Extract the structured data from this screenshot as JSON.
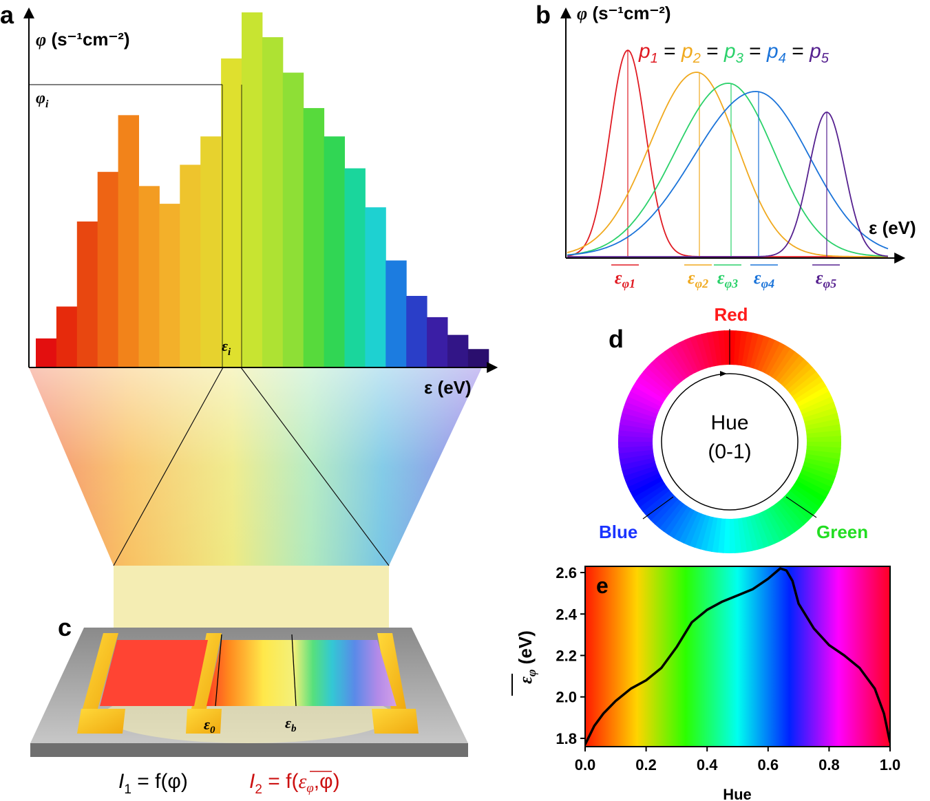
{
  "panel_a": {
    "label": "a",
    "y_axis": {
      "symbol": "φ",
      "unit": "(s⁻¹cm⁻²)"
    },
    "phi_i": "φ",
    "phi_i_sub": "i",
    "eps_i": "ε",
    "eps_i_sub": "i",
    "x_axis": "ε (eV)",
    "bars": [
      {
        "h": 0.08,
        "color": "#e30f0f"
      },
      {
        "h": 0.17,
        "color": "#e62a0c"
      },
      {
        "h": 0.41,
        "color": "#e84710"
      },
      {
        "h": 0.55,
        "color": "#ee6414"
      },
      {
        "h": 0.71,
        "color": "#f2831a"
      },
      {
        "h": 0.51,
        "color": "#f39c22"
      },
      {
        "h": 0.46,
        "color": "#f3b02a"
      },
      {
        "h": 0.57,
        "color": "#eec42d"
      },
      {
        "h": 0.65,
        "color": "#e7d22e"
      },
      {
        "h": 0.87,
        "color": "#dfe02e"
      },
      {
        "h": 1.0,
        "color": "#c8e431"
      },
      {
        "h": 0.93,
        "color": "#aee233"
      },
      {
        "h": 0.83,
        "color": "#8edf36"
      },
      {
        "h": 0.73,
        "color": "#57da3c"
      },
      {
        "h": 0.65,
        "color": "#31d654"
      },
      {
        "h": 0.56,
        "color": "#1ad69c"
      },
      {
        "h": 0.45,
        "color": "#1ed1d1"
      },
      {
        "h": 0.3,
        "color": "#1c7ce0"
      },
      {
        "h": 0.2,
        "color": "#2a3ec8"
      },
      {
        "h": 0.14,
        "color": "#3a1ea5"
      },
      {
        "h": 0.09,
        "color": "#321587"
      },
      {
        "h": 0.05,
        "color": "#2a0e6e"
      }
    ]
  },
  "panel_b": {
    "label": "b",
    "y_axis": {
      "symbol": "φ",
      "unit": "(s⁻¹cm⁻²)"
    },
    "x_axis": "ε (eV)",
    "equality": [
      {
        "p": "p",
        "sub": "1",
        "color": "#e01a22"
      },
      {
        "p": "p",
        "sub": "2",
        "color": "#f0a91e"
      },
      {
        "p": "p",
        "sub": "3",
        "color": "#2ad16a"
      },
      {
        "p": "p",
        "sub": "4",
        "color": "#1a73d9"
      },
      {
        "p": "p",
        "sub": "5",
        "color": "#55208f"
      }
    ],
    "equals_sign": "=",
    "markers": [
      {
        "sym": "ε",
        "sub": "φ1",
        "color": "#e01a22"
      },
      {
        "sym": "ε",
        "sub": "φ2",
        "color": "#f0a91e"
      },
      {
        "sym": "ε",
        "sub": "φ3",
        "color": "#2ad16a"
      },
      {
        "sym": "ε",
        "sub": "φ4",
        "color": "#1a73d9"
      },
      {
        "sym": "ε",
        "sub": "φ5",
        "color": "#55208f"
      }
    ]
  },
  "panel_c": {
    "label": "c",
    "eps_0": "ε",
    "eps_0_sub": "0",
    "eps_b": "ε",
    "eps_b_sub": "b",
    "eq1": {
      "lhs": "I",
      "sub": "1",
      "rhs": " = f(φ)"
    },
    "eq2": {
      "lhs": "I",
      "sub": "2",
      "rhs_a": " = f(",
      "bar": "ε",
      "bar_sub": "φ",
      "rhs_b": ",φ)",
      "color": "#cc1111"
    }
  },
  "panel_d": {
    "label": "d",
    "center_line1": "Hue",
    "center_line2": "(0-1)",
    "red": "Red",
    "green": "Green",
    "blue": "Blue",
    "colors": {
      "red": "#ff1a1a",
      "green": "#22dd22",
      "blue": "#1a33ff"
    }
  },
  "chart_data": {
    "type": "line",
    "label": "e",
    "xlabel": "Hue",
    "ylabel": "ε",
    "ylabel_sub": "φ",
    "ylabel_unit": "(eV)",
    "xlim": [
      0.0,
      1.0
    ],
    "ylim": [
      1.76,
      2.63
    ],
    "xticks": [
      "0.0",
      "0.2",
      "0.4",
      "0.6",
      "0.8",
      "1.0"
    ],
    "yticks": [
      "1.8",
      "2.0",
      "2.2",
      "2.4",
      "2.6"
    ],
    "x": [
      0.0,
      0.03,
      0.06,
      0.1,
      0.15,
      0.2,
      0.25,
      0.3,
      0.35,
      0.4,
      0.45,
      0.5,
      0.55,
      0.6,
      0.64,
      0.66,
      0.68,
      0.7,
      0.75,
      0.8,
      0.85,
      0.9,
      0.95,
      0.98,
      1.0
    ],
    "y": [
      1.77,
      1.86,
      1.92,
      1.98,
      2.04,
      2.08,
      2.14,
      2.24,
      2.36,
      2.42,
      2.46,
      2.49,
      2.52,
      2.57,
      2.62,
      2.61,
      2.56,
      2.45,
      2.33,
      2.25,
      2.2,
      2.14,
      2.04,
      1.92,
      1.78
    ]
  }
}
